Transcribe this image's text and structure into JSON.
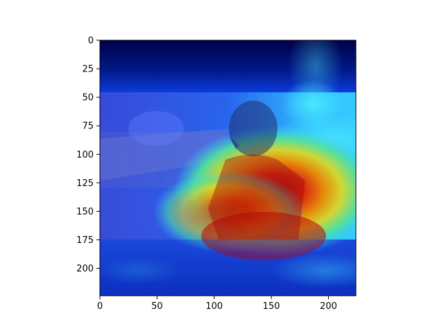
{
  "image": {
    "description_icon": "heatmap-overlay-photo",
    "x_ticks": [
      0,
      50,
      100,
      150,
      200
    ],
    "y_ticks": [
      0,
      25,
      50,
      75,
      100,
      125,
      150,
      175,
      200
    ],
    "x_range": [
      0,
      224
    ],
    "y_range": [
      0,
      224
    ],
    "photo_band_rows": [
      46,
      174
    ],
    "colormap": "jet",
    "colors": {
      "deep_blue": "#00005a",
      "blue": "#0a2bd0",
      "cyan": "#36d6ff",
      "yellow": "#e8d020",
      "red": "#c80000"
    }
  }
}
